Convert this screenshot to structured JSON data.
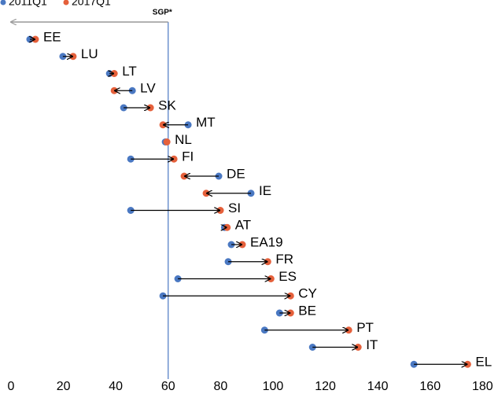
{
  "chart_data": {
    "type": "dumbbell",
    "categories": [
      "EE",
      "LU",
      "LT",
      "LV",
      "SK",
      "MT",
      "NL",
      "FI",
      "DE",
      "IE",
      "SI",
      "AT",
      "EA19",
      "FR",
      "ES",
      "CY",
      "BE",
      "PT",
      "IT",
      "EL"
    ],
    "series": [
      {
        "name": "2011Q1",
        "color": "#4a78c2",
        "values": [
          7.2,
          19.8,
          37.6,
          46.3,
          43,
          67.6,
          58.9,
          45.7,
          79.3,
          91.6,
          45.7,
          81.5,
          84.1,
          82.9,
          63.7,
          58,
          102.5,
          96.8,
          115.1,
          153.8
        ]
      },
      {
        "name": "2017Q1",
        "color": "#e5603b",
        "values": [
          9.3,
          23.7,
          39.4,
          39.4,
          53.2,
          58,
          59.5,
          62.2,
          66.1,
          74.5,
          79.9,
          82.5,
          88.3,
          98,
          99.2,
          106.7,
          106.7,
          128.9,
          132.5,
          174.3
        ]
      }
    ],
    "xlim": [
      0,
      185
    ],
    "xticks": [
      0,
      20,
      40,
      60,
      80,
      100,
      120,
      140,
      160,
      180
    ],
    "reference_line": {
      "value": 60,
      "label": "SGP*"
    }
  }
}
